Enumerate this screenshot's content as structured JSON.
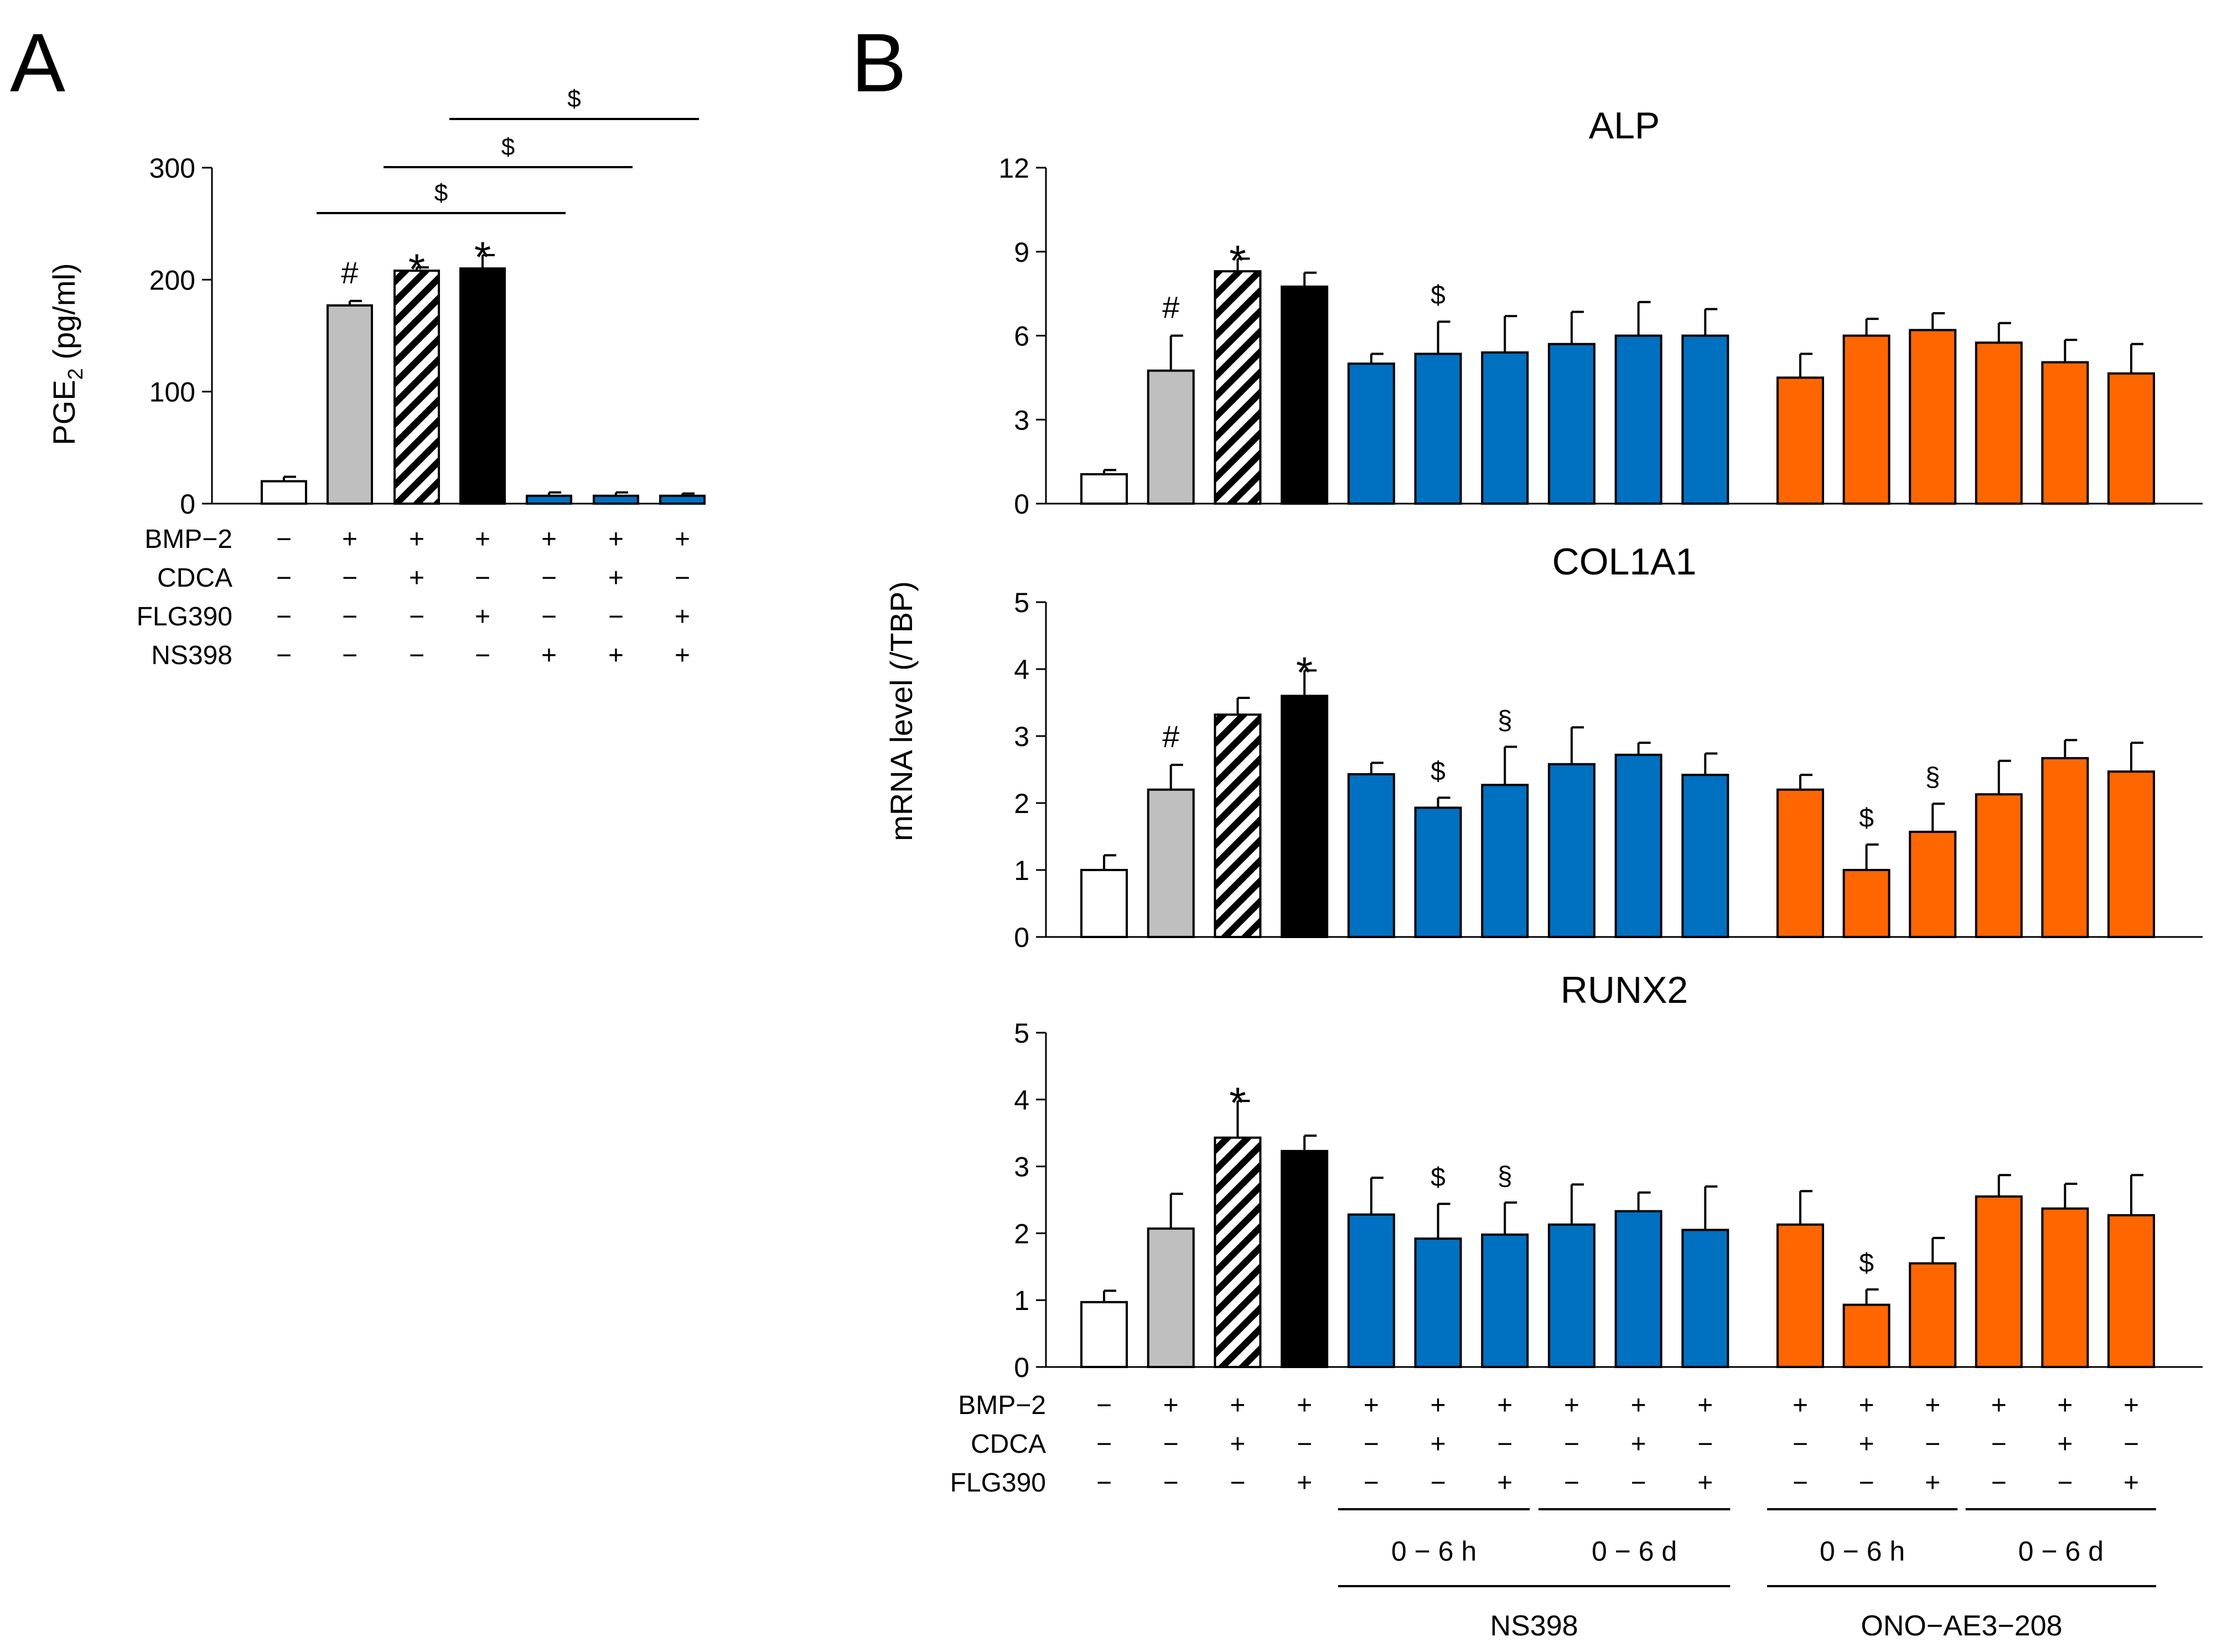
{
  "colors": {
    "white": "#ffffff",
    "grey": "#bfbfbf",
    "black": "#000000",
    "blue": "#0070c0",
    "orange": "#ff6600"
  },
  "panelA": {
    "letter": "A",
    "ylabel_main": "PGE",
    "ylabel_sub": "2",
    "ylabel_unit": " (pg/ml)",
    "conditions": [
      {
        "label": "BMP−2",
        "values": [
          "−",
          "+",
          "+",
          "+",
          "+",
          "+",
          "+"
        ]
      },
      {
        "label": "CDCA",
        "values": [
          "−",
          "−",
          "+",
          "−",
          "−",
          "+",
          "−"
        ]
      },
      {
        "label": "FLG390",
        "values": [
          "−",
          "−",
          "−",
          "+",
          "−",
          "−",
          "+"
        ]
      },
      {
        "label": "NS398",
        "values": [
          "−",
          "−",
          "−",
          "−",
          "+",
          "+",
          "+"
        ]
      }
    ],
    "brackets": [
      {
        "from": 2,
        "to": 4,
        "symbol": "$"
      },
      {
        "from": 3,
        "to": 5,
        "symbol": "$"
      },
      {
        "from": 4,
        "to": 6,
        "symbol": "$"
      }
    ]
  },
  "panelB": {
    "letter": "B",
    "ylabel": "mRNA level (/TBP)",
    "conditions": [
      {
        "label": "BMP−2",
        "values": [
          "−",
          "+",
          "+",
          "+",
          "+",
          "+",
          "+",
          "+",
          "+",
          "+",
          "+",
          "+",
          "+",
          "+",
          "+",
          "+"
        ]
      },
      {
        "label": "CDCA",
        "values": [
          "−",
          "−",
          "+",
          "−",
          "−",
          "+",
          "−",
          "−",
          "+",
          "−",
          "−",
          "+",
          "−",
          "−",
          "+",
          "−"
        ]
      },
      {
        "label": "FLG390",
        "values": [
          "−",
          "−",
          "−",
          "+",
          "−",
          "−",
          "+",
          "−",
          "−",
          "+",
          "−",
          "−",
          "+",
          "−",
          "−",
          "+"
        ]
      }
    ],
    "time_groups": [
      {
        "label": "0 − 6 h",
        "from": 4,
        "to": 6
      },
      {
        "label": "0 − 6 d",
        "from": 7,
        "to": 9
      },
      {
        "label": "0 − 6 h",
        "from": 10,
        "to": 12
      },
      {
        "label": "0 − 6 d",
        "from": 13,
        "to": 15
      }
    ],
    "inhibitor_groups": [
      {
        "label": "NS398",
        "from": 4,
        "to": 9
      },
      {
        "label": "ONO−AE3−208",
        "from": 10,
        "to": 15
      }
    ]
  },
  "chart_data": [
    {
      "type": "bar",
      "title": "",
      "panel": "A",
      "xlabel": "",
      "ylabel": "PGE2 (pg/ml)",
      "ylim": [
        0,
        300
      ],
      "yticks": [
        "0",
        "100",
        "200",
        "300"
      ],
      "values": [
        20,
        177,
        208,
        210,
        7,
        7,
        7
      ],
      "errors": [
        4,
        4,
        3,
        12,
        3,
        3,
        2
      ],
      "fills": [
        "white",
        "grey",
        "hatch",
        "black",
        "blue",
        "blue",
        "blue"
      ],
      "annotations": [
        "",
        "#",
        "*",
        "*",
        "",
        "",
        ""
      ]
    },
    {
      "type": "bar",
      "title": "ALP",
      "panel": "B",
      "xlabel": "",
      "ylabel": "mRNA level (/TBP)",
      "ylim": [
        0,
        12
      ],
      "yticks": [
        "0",
        "3",
        "6",
        "9",
        "12"
      ],
      "values": [
        1.05,
        4.75,
        8.3,
        7.75,
        5.0,
        5.35,
        5.4,
        5.7,
        6.0,
        6.0,
        4.5,
        6.0,
        6.2,
        5.75,
        5.05,
        4.65
      ],
      "errors": [
        0.15,
        1.25,
        0.45,
        0.5,
        0.35,
        1.15,
        1.3,
        1.15,
        1.2,
        0.95,
        0.85,
        0.6,
        0.6,
        0.7,
        0.8,
        1.05
      ],
      "fills": [
        "white",
        "grey",
        "hatch",
        "black",
        "blue",
        "blue",
        "blue",
        "blue",
        "blue",
        "blue",
        "orange",
        "orange",
        "orange",
        "orange",
        "orange",
        "orange"
      ],
      "annotations": [
        "",
        "#",
        "*",
        "",
        "",
        "$",
        "",
        "",
        "",
        "",
        "",
        "",
        "",
        "",
        "",
        ""
      ]
    },
    {
      "type": "bar",
      "title": "COL1A1",
      "panel": "B",
      "xlabel": "",
      "ylabel": "mRNA level (/TBP)",
      "ylim": [
        0,
        5
      ],
      "yticks": [
        "0",
        "1",
        "2",
        "3",
        "4",
        "5"
      ],
      "values": [
        1.0,
        2.2,
        3.32,
        3.6,
        2.43,
        1.93,
        2.27,
        2.58,
        2.72,
        2.42,
        2.2,
        1.0,
        1.57,
        2.13,
        2.67,
        2.47
      ],
      "errors": [
        0.22,
        0.37,
        0.25,
        0.38,
        0.17,
        0.15,
        0.57,
        0.55,
        0.18,
        0.32,
        0.22,
        0.38,
        0.42,
        0.5,
        0.27,
        0.43
      ],
      "fills": [
        "white",
        "grey",
        "hatch",
        "black",
        "blue",
        "blue",
        "blue",
        "blue",
        "blue",
        "blue",
        "orange",
        "orange",
        "orange",
        "orange",
        "orange",
        "orange"
      ],
      "annotations": [
        "",
        "#",
        "",
        "*",
        "",
        "$",
        "§",
        "",
        "",
        "",
        "",
        "$",
        "§",
        "",
        "",
        ""
      ]
    },
    {
      "type": "bar",
      "title": "RUNX2",
      "panel": "B",
      "xlabel": "",
      "ylabel": "mRNA level (/TBP)",
      "ylim": [
        0,
        5
      ],
      "yticks": [
        "0",
        "1",
        "2",
        "3",
        "4",
        "5"
      ],
      "values": [
        0.97,
        2.07,
        3.43,
        3.23,
        2.28,
        1.92,
        1.98,
        2.13,
        2.33,
        2.05,
        2.13,
        0.93,
        1.55,
        2.55,
        2.37,
        2.27
      ],
      "errors": [
        0.17,
        0.52,
        0.55,
        0.23,
        0.55,
        0.52,
        0.48,
        0.6,
        0.28,
        0.65,
        0.5,
        0.23,
        0.38,
        0.32,
        0.37,
        0.6
      ],
      "fills": [
        "white",
        "grey",
        "hatch",
        "black",
        "blue",
        "blue",
        "blue",
        "blue",
        "blue",
        "blue",
        "orange",
        "orange",
        "orange",
        "orange",
        "orange",
        "orange"
      ],
      "annotations": [
        "",
        "",
        "*",
        "",
        "",
        "$",
        "§",
        "",
        "",
        "",
        "",
        "$",
        "",
        "",
        "",
        ""
      ]
    }
  ]
}
